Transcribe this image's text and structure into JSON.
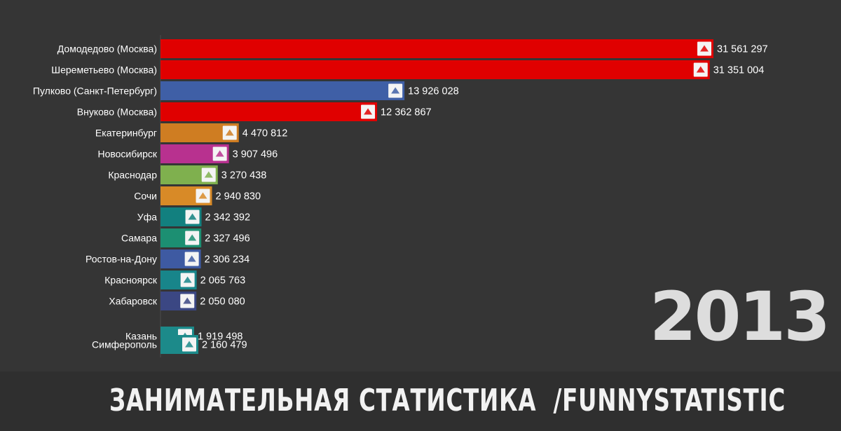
{
  "chart_data": {
    "type": "bar",
    "orientation": "horizontal",
    "categories": [
      "Домодедово (Москва)",
      "Шереметьево (Москва)",
      "Пулково (Санкт-Петербург)",
      "Внуково (Москва)",
      "Екатеринбург",
      "Новосибирск",
      "Краснодар",
      "Сочи",
      "Уфа",
      "Самара",
      "Ростов-на-Дону",
      "Красноярск",
      "Хабаровск",
      "Казань",
      "Симферополь"
    ],
    "values": [
      31561297,
      31351004,
      13926028,
      12362867,
      4470812,
      3907496,
      3270438,
      2940830,
      2342392,
      2327496,
      2306234,
      2065763,
      2050080,
      1919498,
      2160479
    ],
    "value_labels": [
      "31 561 297",
      "31 351 004",
      "13 926 028",
      "12 362 867",
      "4 470 812",
      "3 907 496",
      "3 270 438",
      "2 940 830",
      "2 342 392",
      "2 327 496",
      "2 306 234",
      "2 065 763",
      "2 050 080",
      "1 919 498",
      "2 160 479"
    ],
    "colors": [
      "#e00000",
      "#e00000",
      "#3f5fa6",
      "#e00000",
      "#cf7d22",
      "#b8318f",
      "#7fb04e",
      "#d88a27",
      "#12807f",
      "#1c8f72",
      "#3e5aa2",
      "#18858a",
      "#3b4783",
      "#1c8a8a",
      "#1c8a8a"
    ],
    "icons": [
      "domodedovo-logo-icon",
      "sheremetyevo-logo-icon",
      "pulkovo-logo-icon",
      "vnukovo-logo-icon",
      "koltsovo-logo-icon",
      "tolmachevo-logo-icon",
      "krasnodar-logo-icon",
      "sochi-logo-icon",
      "ufa-logo-icon",
      "kurumoch-logo-icon",
      "rostov-logo-icon",
      "krasnoyarsk-logo-icon",
      "khabarovsk-logo-icon",
      "kazan-logo-icon",
      "simferopol-logo-icon"
    ],
    "xlim": [
      0,
      31561297
    ],
    "grid": false,
    "year": "2013"
  },
  "footer": {
    "text": "ЗАНИМАТЕЛЬНАЯ СТАТИСТИКА  /FUNNYSTATISTIC"
  }
}
